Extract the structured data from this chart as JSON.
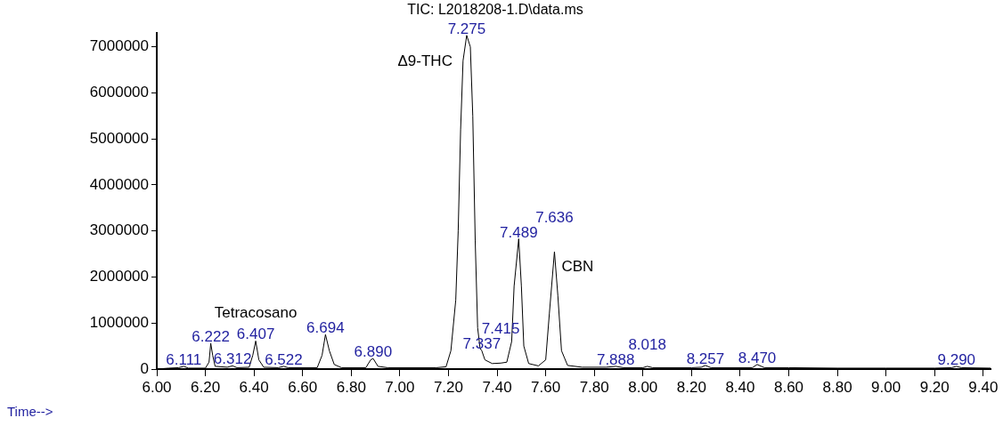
{
  "chart_data": {
    "type": "line",
    "title": "TIC: L2018208-1.D\\data.ms",
    "xlabel": "Time-->",
    "color": "#000000",
    "marker": "none",
    "x": [
      6.0,
      6.05,
      6.09,
      6.111,
      6.13,
      6.2,
      6.215,
      6.222,
      6.23,
      6.24,
      6.29,
      6.312,
      6.33,
      6.38,
      6.395,
      6.407,
      6.42,
      6.44,
      6.5,
      6.522,
      6.54,
      6.66,
      6.68,
      6.694,
      6.71,
      6.73,
      6.76,
      6.86,
      6.88,
      6.89,
      6.91,
      6.95,
      7.15,
      7.19,
      7.21,
      7.23,
      7.24,
      7.25,
      7.26,
      7.275,
      7.29,
      7.3,
      7.31,
      7.32,
      7.33,
      7.337,
      7.35,
      7.38,
      7.415,
      7.44,
      7.46,
      7.47,
      7.489,
      7.5,
      7.51,
      7.53,
      7.57,
      7.6,
      7.615,
      7.636,
      7.65,
      7.665,
      7.69,
      7.75,
      7.85,
      7.888,
      7.92,
      8.0,
      8.018,
      8.04,
      8.2,
      8.24,
      8.257,
      8.28,
      8.45,
      8.47,
      8.5,
      8.6,
      8.8,
      9.0,
      9.2,
      9.27,
      9.29,
      9.31,
      9.43
    ],
    "values": [
      0,
      20000,
      30000,
      60000,
      20000,
      20000,
      150000,
      560000,
      300000,
      60000,
      40000,
      70000,
      30000,
      40000,
      300000,
      610000,
      200000,
      40000,
      30000,
      60000,
      30000,
      30000,
      300000,
      750000,
      400000,
      100000,
      30000,
      30000,
      200000,
      230000,
      60000,
      30000,
      30000,
      50000,
      400000,
      1500000,
      3000000,
      5200000,
      6700000,
      7250000,
      7000000,
      5500000,
      2800000,
      900000,
      450000,
      400000,
      200000,
      120000,
      130000,
      150000,
      600000,
      1800000,
      2830000,
      1800000,
      500000,
      120000,
      70000,
      200000,
      1200000,
      2550000,
      1600000,
      400000,
      80000,
      40000,
      40000,
      60000,
      30000,
      30000,
      60000,
      30000,
      30000,
      40000,
      80000,
      30000,
      30000,
      100000,
      30000,
      30000,
      20000,
      20000,
      20000,
      30000,
      60000,
      30000,
      20000
    ],
    "xlim": [
      6.0,
      9.43
    ],
    "xticks": [
      {
        "value": 6.0,
        "label": "6.00"
      },
      {
        "value": 6.2,
        "label": "6.20"
      },
      {
        "value": 6.4,
        "label": "6.40"
      },
      {
        "value": 6.6,
        "label": "6.60"
      },
      {
        "value": 6.8,
        "label": "6.80"
      },
      {
        "value": 7.0,
        "label": "7.00"
      },
      {
        "value": 7.2,
        "label": "7.20"
      },
      {
        "value": 7.4,
        "label": "7.40"
      },
      {
        "value": 7.6,
        "label": "7.60"
      },
      {
        "value": 7.8,
        "label": "7.80"
      },
      {
        "value": 8.0,
        "label": "8.00"
      },
      {
        "value": 8.2,
        "label": "8.20"
      },
      {
        "value": 8.4,
        "label": "8.40"
      },
      {
        "value": 8.6,
        "label": "8.60"
      },
      {
        "value": 8.8,
        "label": "8.80"
      },
      {
        "value": 9.0,
        "label": "9.00"
      },
      {
        "value": 9.2,
        "label": "9.20"
      },
      {
        "value": 9.4,
        "label": "9.40"
      }
    ],
    "ylim": [
      0,
      7300000
    ],
    "yticks": [
      0,
      1000000,
      2000000,
      3000000,
      4000000,
      5000000,
      6000000,
      7000000
    ],
    "annotations": [
      {
        "text": "Δ9-THC",
        "x": 7.275,
        "y": 7250000
      },
      {
        "text": "Tetracosano",
        "x": 6.407,
        "y": 610000
      },
      {
        "text": "CBN",
        "x": 7.636,
        "y": 2550000
      },
      {
        "text": "6.111",
        "x": 6.111,
        "y": 60000
      },
      {
        "text": "6.222",
        "x": 6.222,
        "y": 560000
      },
      {
        "text": "6.312",
        "x": 6.312,
        "y": 70000
      },
      {
        "text": "6.407",
        "x": 6.407,
        "y": 610000
      },
      {
        "text": "6.522",
        "x": 6.522,
        "y": 60000
      },
      {
        "text": "6.694",
        "x": 6.694,
        "y": 750000
      },
      {
        "text": "6.890",
        "x": 6.89,
        "y": 230000
      },
      {
        "text": "7.275",
        "x": 7.275,
        "y": 7250000
      },
      {
        "text": "7.337",
        "x": 7.337,
        "y": 400000
      },
      {
        "text": "7.415",
        "x": 7.415,
        "y": 130000
      },
      {
        "text": "7.489",
        "x": 7.489,
        "y": 2830000
      },
      {
        "text": "7.636",
        "x": 7.636,
        "y": 2550000
      },
      {
        "text": "7.888",
        "x": 7.888,
        "y": 60000
      },
      {
        "text": "8.018",
        "x": 8.018,
        "y": 60000
      },
      {
        "text": "8.257",
        "x": 8.257,
        "y": 80000
      },
      {
        "text": "8.470",
        "x": 8.47,
        "y": 100000
      },
      {
        "text": "9.290",
        "x": 9.29,
        "y": 60000
      }
    ]
  }
}
